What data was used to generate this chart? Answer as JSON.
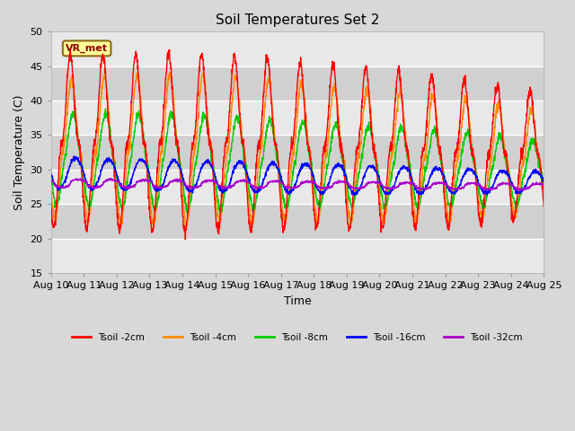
{
  "title": "Soil Temperatures Set 2",
  "xlabel": "Time",
  "ylabel": "Soil Temperature (C)",
  "ylim": [
    15,
    50
  ],
  "yticks": [
    15,
    20,
    25,
    30,
    35,
    40,
    45,
    50
  ],
  "x_tick_labels": [
    "Aug 10",
    "Aug 11",
    "Aug 12",
    "Aug 13",
    "Aug 14",
    "Aug 15",
    "Aug 16",
    "Aug 17",
    "Aug 18",
    "Aug 19",
    "Aug 20",
    "Aug 21",
    "Aug 22",
    "Aug 23",
    "Aug 24",
    "Aug 25"
  ],
  "annotation_text": "VR_met",
  "series": [
    {
      "label": "Tsoil -2cm",
      "color": "#ff0000"
    },
    {
      "label": "Tsoil -4cm",
      "color": "#ff8c00"
    },
    {
      "label": "Tsoil -8cm",
      "color": "#00cc00"
    },
    {
      "label": "Tsoil -16cm",
      "color": "#0000ff"
    },
    {
      "label": "Tsoil -32cm",
      "color": "#aa00cc"
    }
  ],
  "figure_bg": "#d8d8d8",
  "plot_bg": "#e8e8e8",
  "band_color1": "#e8e8e8",
  "band_color2": "#d0d0d0",
  "grid_color": "#ffffff",
  "n_days": 15,
  "samples_per_day": 144
}
